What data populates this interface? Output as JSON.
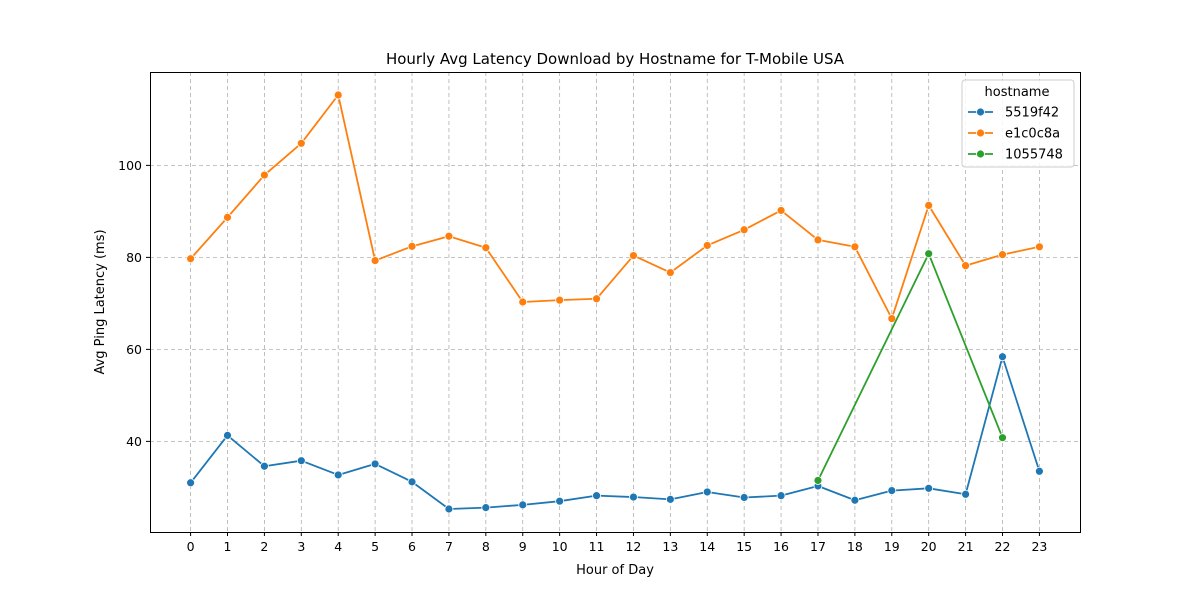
{
  "chart_data": {
    "type": "line",
    "title": "Hourly Avg Latency Download by Hostname for T-Mobile USA",
    "xlabel": "Hour of Day",
    "ylabel": "Avg Ping Latency (ms)",
    "xlim": [
      -1.1,
      24.1
    ],
    "ylim": [
      20.3,
      120.3
    ],
    "x_ticks": [
      0,
      1,
      2,
      3,
      4,
      5,
      6,
      7,
      8,
      9,
      10,
      11,
      12,
      13,
      14,
      15,
      16,
      17,
      18,
      19,
      20,
      21,
      22,
      23
    ],
    "y_ticks": [
      40,
      60,
      80,
      100
    ],
    "grid": true,
    "legend": {
      "title": "hostname",
      "position": "upper-right"
    },
    "series": [
      {
        "name": "5519f42",
        "color": "#1f77b4",
        "x": [
          0,
          1,
          2,
          3,
          4,
          5,
          6,
          7,
          8,
          9,
          10,
          11,
          12,
          13,
          14,
          15,
          16,
          17,
          18,
          19,
          20,
          21,
          22,
          23
        ],
        "values": [
          31.0,
          41.3,
          34.6,
          35.8,
          32.7,
          35.1,
          31.2,
          25.3,
          25.6,
          26.2,
          27.0,
          28.2,
          27.9,
          27.4,
          29.0,
          27.8,
          28.2,
          30.3,
          27.2,
          29.3,
          29.8,
          28.5,
          58.4,
          33.5
        ]
      },
      {
        "name": "e1c0c8a",
        "color": "#ff7f0e",
        "x": [
          0,
          1,
          2,
          3,
          4,
          5,
          6,
          7,
          8,
          9,
          10,
          11,
          12,
          13,
          14,
          15,
          16,
          17,
          18,
          19,
          20,
          21,
          22,
          23
        ],
        "values": [
          79.7,
          88.7,
          97.9,
          104.8,
          115.3,
          79.3,
          82.4,
          84.6,
          82.1,
          70.3,
          70.7,
          71.0,
          80.4,
          76.7,
          82.6,
          86.0,
          90.2,
          83.8,
          82.3,
          66.7,
          91.3,
          78.2,
          80.6,
          82.3
        ]
      },
      {
        "name": "1055748",
        "color": "#2ca02c",
        "x": [
          17,
          20,
          22
        ],
        "values": [
          31.5,
          80.8,
          40.8
        ]
      }
    ]
  }
}
